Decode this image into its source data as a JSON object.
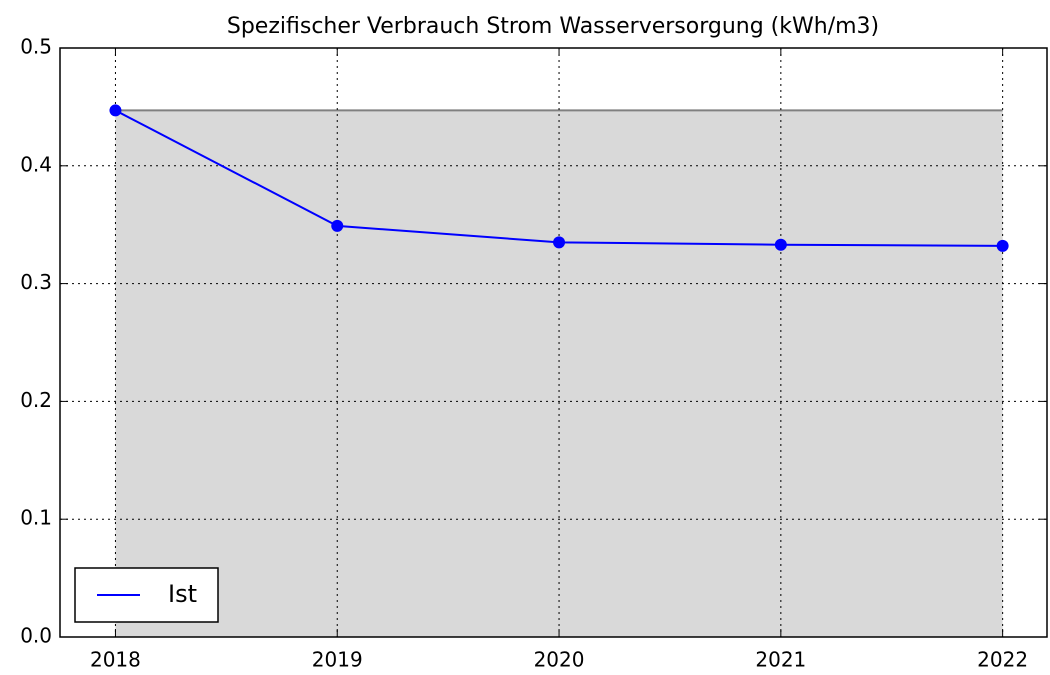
{
  "chart_data": {
    "type": "line",
    "title": "Spezifischer Verbrauch Strom Wasserversorgung (kWh/m3)",
    "x": [
      2018,
      2019,
      2020,
      2021,
      2022
    ],
    "series": [
      {
        "name": "Ist",
        "color": "#0000ff",
        "values": [
          0.447,
          0.349,
          0.335,
          0.333,
          0.332
        ]
      }
    ],
    "fill_level": 0.447,
    "fill_color": "#d9d9d9",
    "fill_edge_color": "#808080",
    "xlim": [
      2017.75,
      2022.2
    ],
    "xticks": [
      2018,
      2019,
      2020,
      2021,
      2022
    ],
    "ylim": [
      0,
      0.5
    ],
    "yticks": [
      {
        "value": 0,
        "label": "0.0"
      },
      0.1,
      0.2,
      0.3,
      0.4,
      0.5
    ],
    "grid": true,
    "legend": "lower left"
  }
}
